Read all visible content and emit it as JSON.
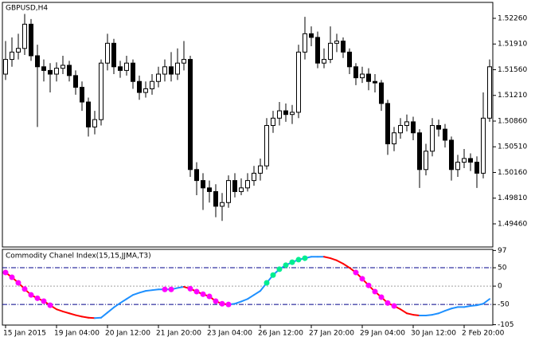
{
  "chart_data": [
    {
      "type": "candlestick",
      "title": "GBPUSD,H4",
      "categories": [
        "15 Jan 2015",
        null,
        null,
        null,
        null,
        null,
        null,
        null,
        "19 Jan 04:00",
        null,
        null,
        null,
        null,
        null,
        null,
        null,
        "20 Jan 12:00",
        null,
        null,
        null,
        null,
        null,
        null,
        null,
        "21 Jan 20:00",
        null,
        null,
        null,
        null,
        null,
        null,
        null,
        "23 Jan 04:00",
        null,
        null,
        null,
        null,
        null,
        null,
        null,
        "26 Jan 12:00",
        null,
        null,
        null,
        null,
        null,
        null,
        null,
        "27 Jan 20:00",
        null,
        null,
        null,
        null,
        null,
        null,
        null,
        "29 Jan 04:00",
        null,
        null,
        null,
        null,
        null,
        null,
        null,
        "30 Jan 12:00",
        null,
        null,
        null,
        null,
        null,
        null,
        null,
        "2 Feb 20:00",
        null,
        null,
        null,
        null
      ],
      "open": [
        1.515,
        1.517,
        1.518,
        1.5185,
        1.5218,
        1.5175,
        1.516,
        1.5155,
        1.515,
        1.5158,
        1.5162,
        1.5148,
        1.5132,
        1.5112,
        1.5078,
        1.5088,
        1.5165,
        1.5192,
        1.516,
        1.5155,
        1.5165,
        1.514,
        1.5125,
        1.513,
        1.514,
        1.515,
        1.516,
        1.515,
        1.5165,
        1.517,
        1.502,
        1.5005,
        1.4995,
        1.499,
        1.497,
        1.4975,
        1.5005,
        1.499,
        1.4995,
        1.5005,
        1.5015,
        1.5025,
        1.508,
        1.509,
        1.51,
        1.5095,
        1.5098,
        1.518,
        1.5205,
        1.52,
        1.5165,
        1.517,
        1.5192,
        1.5195,
        1.518,
        1.516,
        1.5145,
        1.515,
        1.514,
        1.5138,
        1.511,
        1.5055,
        1.507,
        1.508,
        1.5085,
        1.507,
        1.502,
        1.5045,
        1.508,
        1.5075,
        1.506,
        1.502,
        1.503,
        1.5035,
        1.503,
        1.5015,
        1.509
      ],
      "high": [
        1.5195,
        1.52,
        1.5205,
        1.5232,
        1.5225,
        1.519,
        1.517,
        1.5165,
        1.5166,
        1.5175,
        1.5168,
        1.5155,
        1.514,
        1.5118,
        1.51,
        1.517,
        1.5205,
        1.5198,
        1.5168,
        1.5175,
        1.517,
        1.5148,
        1.514,
        1.515,
        1.516,
        1.517,
        1.518,
        1.5185,
        1.5195,
        1.5175,
        1.503,
        1.5015,
        1.5005,
        1.5,
        1.4988,
        1.5012,
        1.5015,
        1.5008,
        1.5015,
        1.5025,
        1.5035,
        1.509,
        1.51,
        1.5112,
        1.511,
        1.5108,
        1.519,
        1.5228,
        1.5215,
        1.5208,
        1.5185,
        1.5215,
        1.5205,
        1.52,
        1.5185,
        1.5165,
        1.516,
        1.5158,
        1.515,
        1.5142,
        1.5115,
        1.5078,
        1.509,
        1.5095,
        1.5092,
        1.5075,
        1.5055,
        1.509,
        1.5088,
        1.5082,
        1.5065,
        1.504,
        1.5048,
        1.5042,
        1.5038,
        1.5125,
        1.517
      ],
      "low": [
        1.5142,
        1.516,
        1.517,
        1.5176,
        1.5168,
        1.5078,
        1.514,
        1.5125,
        1.514,
        1.515,
        1.514,
        1.5122,
        1.51,
        1.5065,
        1.5068,
        1.508,
        1.5155,
        1.515,
        1.5145,
        1.5148,
        1.513,
        1.5115,
        1.5118,
        1.5122,
        1.5132,
        1.514,
        1.514,
        1.5142,
        1.5155,
        1.501,
        1.4985,
        1.4965,
        1.4975,
        1.4955,
        1.495,
        1.4968,
        1.4982,
        1.4985,
        1.499,
        1.4998,
        1.5005,
        1.502,
        1.507,
        1.508,
        1.5085,
        1.5082,
        1.509,
        1.517,
        1.5188,
        1.5158,
        1.5158,
        1.5165,
        1.518,
        1.5172,
        1.515,
        1.5135,
        1.5138,
        1.5128,
        1.5125,
        1.51,
        1.504,
        1.5045,
        1.5062,
        1.5072,
        1.506,
        1.4995,
        1.5012,
        1.5038,
        1.5065,
        1.505,
        1.5005,
        1.501,
        1.5022,
        1.5018,
        1.4995,
        1.5008,
        1.5085
      ],
      "close": [
        1.517,
        1.518,
        1.5185,
        1.5218,
        1.5175,
        1.516,
        1.5155,
        1.515,
        1.5158,
        1.5162,
        1.5148,
        1.5132,
        1.5112,
        1.5078,
        1.5088,
        1.5165,
        1.5192,
        1.516,
        1.5155,
        1.5165,
        1.514,
        1.5125,
        1.513,
        1.514,
        1.515,
        1.516,
        1.515,
        1.5165,
        1.517,
        1.502,
        1.5005,
        1.4995,
        1.499,
        1.497,
        1.4975,
        1.5005,
        1.499,
        1.4995,
        1.5005,
        1.5015,
        1.5025,
        1.508,
        1.509,
        1.51,
        1.5095,
        1.5098,
        1.518,
        1.5205,
        1.52,
        1.5165,
        1.517,
        1.5192,
        1.5195,
        1.518,
        1.516,
        1.5145,
        1.515,
        1.514,
        1.5138,
        1.511,
        1.5055,
        1.507,
        1.508,
        1.5085,
        1.507,
        1.502,
        1.5045,
        1.508,
        1.5075,
        1.506,
        1.502,
        1.503,
        1.5035,
        1.503,
        1.5015,
        1.509,
        1.516
      ],
      "ylim": [
        1.49145,
        1.52477
      ],
      "yticks": [
        {
          "value": 1.4946,
          "label": "1.49460"
        },
        {
          "value": 1.4981,
          "label": "1.49810"
        },
        {
          "value": 1.5016,
          "label": "1.50160"
        },
        {
          "value": 1.5051,
          "label": "1.50510"
        },
        {
          "value": 1.5086,
          "label": "1.50860"
        },
        {
          "value": 1.5121,
          "label": "1.51210"
        },
        {
          "value": 1.5156,
          "label": "1.51560"
        },
        {
          "value": 1.5191,
          "label": "1.51910"
        },
        {
          "value": 1.5226,
          "label": "1.52260"
        }
      ],
      "up_color": "#ffffff",
      "down_color": "#000000"
    },
    {
      "type": "line",
      "title": "Commodity Chanel Index(15,15,JJMA,T3)",
      "values": [
        37,
        24,
        9,
        -8,
        -24,
        -33,
        -41,
        -52,
        -63,
        -69,
        -74,
        -79,
        -83,
        -86,
        -87,
        -86,
        -72,
        -58,
        -46,
        -35,
        -24,
        -18,
        -13,
        -11,
        -9,
        -9,
        -9,
        -5,
        -2,
        -7,
        -15,
        -22,
        -28,
        -41,
        -48,
        -50,
        -48,
        -42,
        -35,
        -24,
        -13,
        9,
        30,
        46,
        57,
        65,
        72,
        76,
        80,
        80,
        80,
        76,
        70,
        61,
        50,
        37,
        20,
        2,
        -15,
        -30,
        -46,
        -54,
        -63,
        -74,
        -78,
        -80,
        -80,
        -78,
        -74,
        -67,
        -61,
        -57,
        -57,
        -54,
        -52,
        -48,
        -35
      ],
      "ylim": [
        -106,
        100
      ],
      "yticks": [
        97,
        50,
        0,
        -50,
        -105
      ],
      "rise_color": "#1e90ff",
      "fall_color": "#ff0000",
      "up_dot_color": "#00ee90",
      "down_dot_color": "#ff00ff",
      "level_color": "#00008b",
      "zero_color": "#a0a0a0"
    }
  ]
}
